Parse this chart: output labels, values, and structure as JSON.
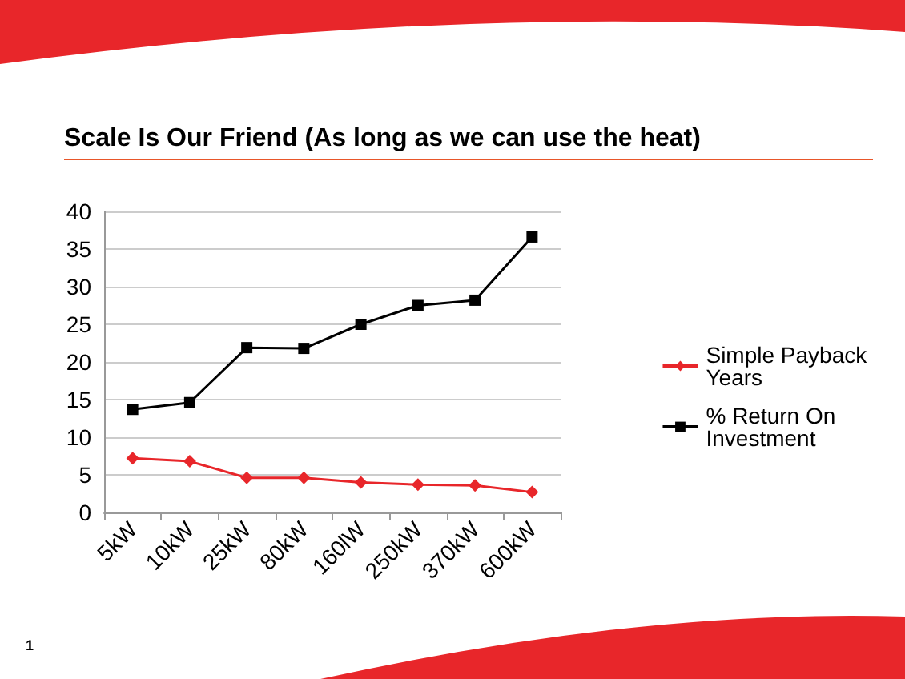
{
  "chart_data": {
    "type": "line",
    "title": "Scale Is Our Friend (As long as we can use the heat)",
    "categories": [
      "5kW",
      "10kW",
      "25kW",
      "80kW",
      "160lW",
      "250kW",
      "370kW",
      "600kW"
    ],
    "series": [
      {
        "name": "Simple Payback Years",
        "color": "#e8262a",
        "marker": "diamond",
        "values": [
          7.2,
          6.8,
          4.6,
          4.6,
          4.0,
          3.7,
          3.6,
          2.7
        ]
      },
      {
        "name": "% Return On Investment",
        "color": "#000000",
        "marker": "square",
        "values": [
          13.7,
          14.6,
          21.9,
          21.8,
          25.0,
          27.5,
          28.2,
          36.6
        ]
      }
    ],
    "ylim": [
      0,
      40
    ],
    "yticks": [
      0,
      5,
      10,
      15,
      20,
      25,
      30,
      35,
      40
    ],
    "grid": "y",
    "legend": "right",
    "line_style": "solid",
    "annotations": [
      "1"
    ]
  }
}
